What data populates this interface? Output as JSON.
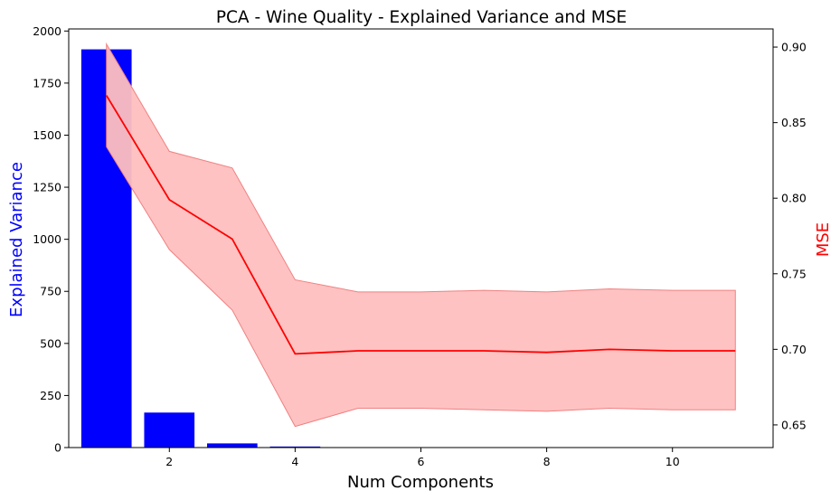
{
  "chart_data": {
    "type": "bar+line",
    "title": "PCA - Wine Quality - Explained Variance and MSE",
    "xlabel": "Num Components",
    "ylabel_left": "Explained Variance",
    "ylabel_right": "MSE",
    "xlim": [
      0.4,
      11.6
    ],
    "ylim_left": [
      0,
      2010
    ],
    "ylim_right": [
      0.635,
      0.912
    ],
    "x_ticks": [
      2,
      4,
      6,
      8,
      10
    ],
    "y_left_ticks": [
      0,
      250,
      500,
      750,
      1000,
      1250,
      1500,
      1750,
      2000
    ],
    "y_right_ticks": [
      0.65,
      0.7,
      0.75,
      0.8,
      0.85,
      0.9
    ],
    "grid": false,
    "colors": {
      "bars": "#0000ff",
      "line": "#ff0000",
      "band": "#ffbfbf",
      "band_edge": "#f08080",
      "left_label": "#0000ff",
      "right_label": "#ff0000"
    },
    "bars": {
      "name": "Explained Variance",
      "x": [
        1,
        2,
        3,
        4,
        5,
        6,
        7,
        8,
        9,
        10,
        11
      ],
      "values": [
        1912,
        168,
        20,
        5,
        1,
        0.5,
        0.3,
        0.2,
        0.1,
        0.05,
        0.02
      ]
    },
    "line": {
      "name": "MSE",
      "x": [
        1,
        2,
        3,
        4,
        5,
        6,
        7,
        8,
        9,
        10,
        11
      ],
      "values": [
        0.868,
        0.799,
        0.773,
        0.697,
        0.699,
        0.699,
        0.699,
        0.698,
        0.7,
        0.699,
        0.699
      ],
      "upper": [
        0.902,
        0.831,
        0.82,
        0.746,
        0.738,
        0.738,
        0.739,
        0.738,
        0.74,
        0.739,
        0.739
      ],
      "lower": [
        0.834,
        0.766,
        0.726,
        0.649,
        0.661,
        0.661,
        0.66,
        0.659,
        0.661,
        0.66,
        0.66
      ]
    }
  }
}
